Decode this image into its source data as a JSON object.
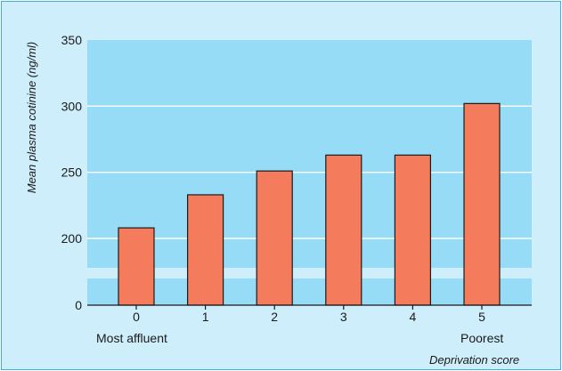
{
  "chart_data": {
    "type": "bar",
    "title": "",
    "ylabel": "Mean plasma cotinine (ng/ml)",
    "xlabel": "Deprivation score",
    "categories": [
      "0",
      "1",
      "2",
      "3",
      "4",
      "5"
    ],
    "values": [
      208,
      233,
      251,
      263,
      263,
      302
    ],
    "yticks": [
      "0",
      "200",
      "250",
      "300",
      "350"
    ],
    "ylim": [
      150,
      350
    ],
    "axis_break": true,
    "grid": true,
    "bar_color": "#f47c5c",
    "plot_background": "#97dcf6",
    "panel_background": "#cfeefb",
    "annotations": {
      "left_end": "Most affluent",
      "right_end": "Poorest"
    }
  }
}
